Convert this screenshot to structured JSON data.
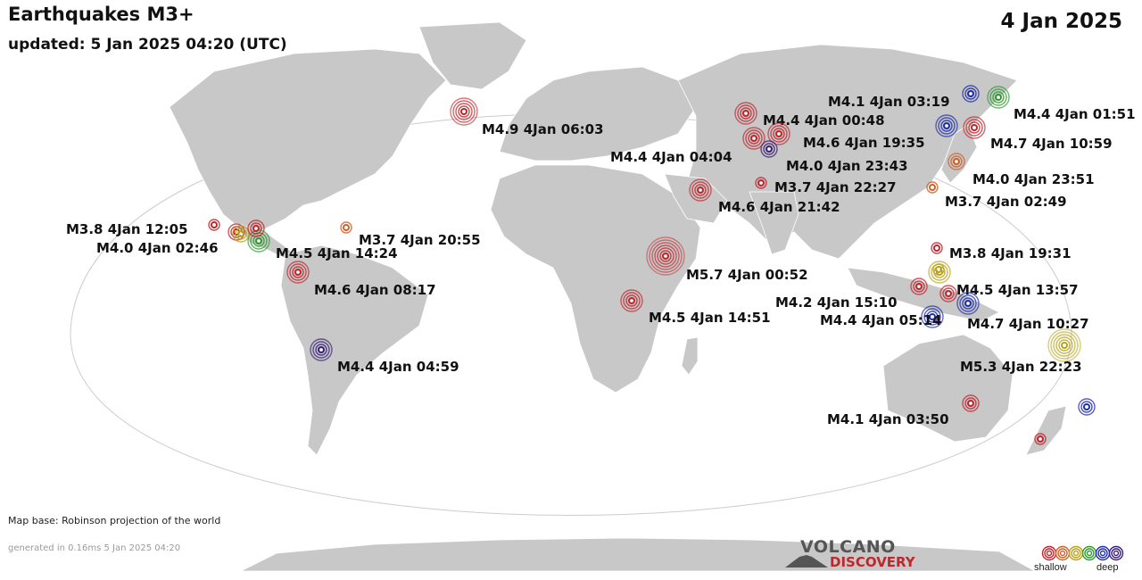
{
  "title": "Earthquakes M3+",
  "updated": "updated:  5 Jan 2025 04:20 (UTC)",
  "date": "4 Jan 2025",
  "map_base": "Map base: Robinson projection of the world",
  "generated": "generated in 0.16ms  5 Jan 2025 04:20",
  "logo": {
    "top": "VOLCANO",
    "bottom": "DISCOVERY"
  },
  "legend": {
    "shallow": "shallow",
    "deep": "deep",
    "colors": [
      "#c0262c",
      "#d0612a",
      "#b8a21a",
      "#2e9a2e",
      "#1f2fa8",
      "#3a1f78"
    ]
  },
  "colors": {
    "ocean": "#ffffff",
    "land": "#c8c8c8",
    "border": "#ffffff"
  },
  "quakes": [
    {
      "label": "M4.9  4Jan 06:03",
      "depth_class": "shallow",
      "magnitude": 4.9
    },
    {
      "label": "M4.4  4Jan 00:48",
      "depth_class": "shallow",
      "magnitude": 4.4
    },
    {
      "label": "M4.6  4Jan 19:35",
      "depth_class": "shallow",
      "magnitude": 4.6
    },
    {
      "label": "M4.4  4Jan 04:04",
      "depth_class": "shallow",
      "magnitude": 4.4
    },
    {
      "label": "M4.0  4Jan 23:43",
      "depth_class": "deep",
      "magnitude": 4.0
    },
    {
      "label": "M3.7  4Jan 22:27",
      "depth_class": "shallow",
      "magnitude": 3.7
    },
    {
      "label": "M4.6  4Jan 21:42",
      "depth_class": "shallow",
      "magnitude": 4.6
    },
    {
      "label": "M4.1  4Jan 03:19",
      "depth_class": "deep",
      "magnitude": 4.1
    },
    {
      "label": "M4.4  4Jan 01:51",
      "depth_class": "intermediate",
      "magnitude": 4.4
    },
    {
      "label": "M4.7  4Jan 10:59",
      "depth_class": "shallow",
      "magnitude": 4.7
    },
    {
      "label": "M4.0  4Jan 23:51",
      "depth_class": "shallow",
      "magnitude": 4.0
    },
    {
      "label": "M3.7  4Jan 02:49",
      "depth_class": "shallow",
      "magnitude": 3.7
    },
    {
      "label": "M3.8  4Jan 12:05",
      "depth_class": "shallow",
      "magnitude": 3.8
    },
    {
      "label": "M4.0  4Jan 02:46",
      "depth_class": "shallow",
      "magnitude": 4.0
    },
    {
      "label": "M4.5  4Jan 14:24",
      "depth_class": "intermediate",
      "magnitude": 4.5
    },
    {
      "label": "M3.7  4Jan 20:55",
      "depth_class": "shallow",
      "magnitude": 3.7
    },
    {
      "label": "M4.6  4Jan 08:17",
      "depth_class": "shallow",
      "magnitude": 4.6
    },
    {
      "label": "M5.7  4Jan 00:52",
      "depth_class": "shallow",
      "magnitude": 5.7
    },
    {
      "label": "M4.5  4Jan 14:51",
      "depth_class": "shallow",
      "magnitude": 4.5
    },
    {
      "label": "M4.4  4Jan 04:59",
      "depth_class": "deep",
      "magnitude": 4.4
    },
    {
      "label": "M3.8  4Jan 19:31",
      "depth_class": "shallow",
      "magnitude": 3.8
    },
    {
      "label": "M4.5  4Jan 13:57",
      "depth_class": "intermediate",
      "magnitude": 4.5
    },
    {
      "label": "M4.2  4Jan 15:10",
      "depth_class": "shallow",
      "magnitude": 4.2
    },
    {
      "label": "M4.4  4Jan 05:14",
      "depth_class": "deep",
      "magnitude": 4.4
    },
    {
      "label": "M4.7  4Jan 10:27",
      "depth_class": "deep",
      "magnitude": 4.7
    },
    {
      "label": "M5.3  4Jan 22:23",
      "depth_class": "intermediate",
      "magnitude": 5.3
    },
    {
      "label": "M4.1  4Jan 03:50",
      "depth_class": "shallow",
      "magnitude": 4.1
    },
    {
      "label": "",
      "depth_class": "deep",
      "magnitude": 4.4
    },
    {
      "label": "",
      "depth_class": "intermediate",
      "magnitude": 3.8
    },
    {
      "label": "",
      "depth_class": "shallow",
      "magnitude": 4.0
    },
    {
      "label": "",
      "depth_class": "intermediate",
      "magnitude": 4.3
    },
    {
      "label": "",
      "depth_class": "deep",
      "magnitude": 4.2
    },
    {
      "label": "",
      "depth_class": "shallow",
      "magnitude": 4.3
    },
    {
      "label": "",
      "depth_class": "shallow",
      "magnitude": 3.9
    }
  ]
}
